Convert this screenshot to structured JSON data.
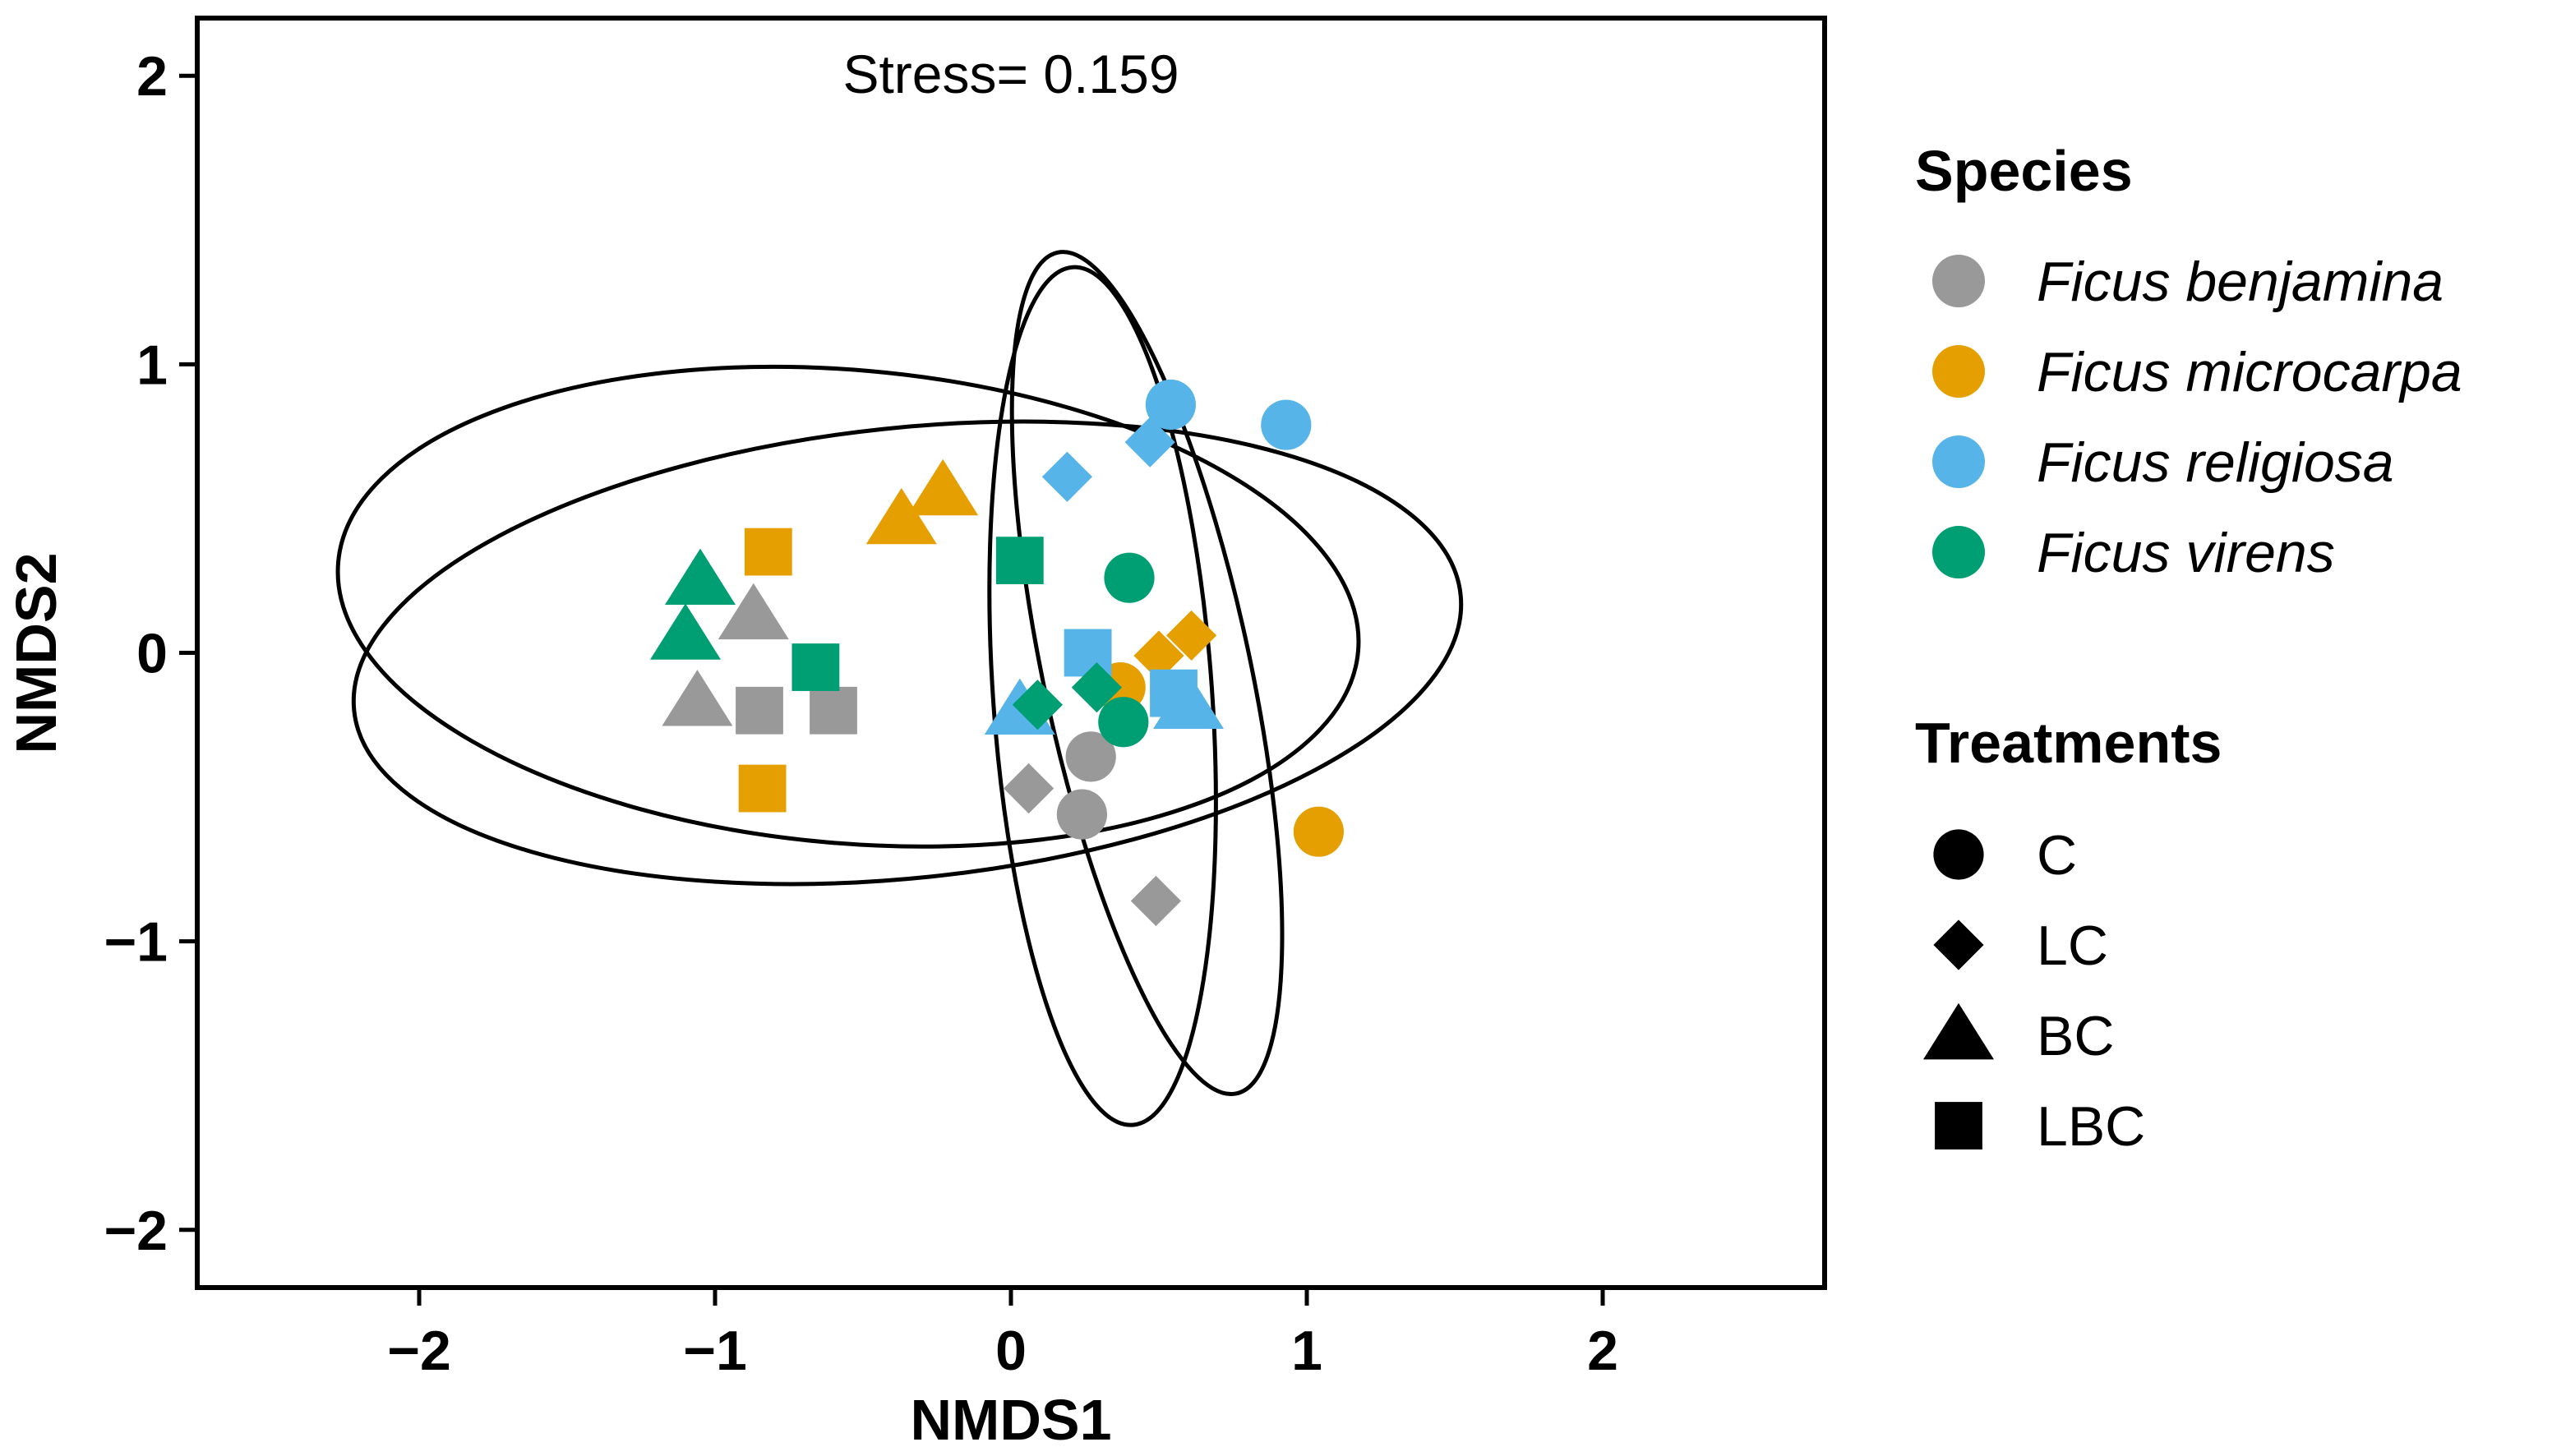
{
  "chart_data": {
    "type": "scatter",
    "title": "",
    "xlabel": "NMDS1",
    "ylabel": "NMDS2",
    "xlim": [
      -2.75,
      2.75
    ],
    "ylim": [
      -2.2,
      2.2
    ],
    "xticks": [
      -2,
      -1,
      0,
      1,
      2
    ],
    "yticks": [
      -2,
      -1,
      0,
      1,
      2
    ],
    "xtick_labels": [
      "−2",
      "−1",
      "0",
      "1",
      "2"
    ],
    "ytick_labels": [
      "−2",
      "−1",
      "0",
      "1",
      "2"
    ],
    "grid": false,
    "annotation": "Stress= 0.159",
    "legend_position": "right",
    "species_legend": {
      "title": "Species",
      "entries": [
        {
          "key": "benjamina",
          "label": "Ficus benjamina",
          "color": "#999999"
        },
        {
          "key": "microcarpa",
          "label": "Ficus microcarpa",
          "color": "#E69F00"
        },
        {
          "key": "religiosa",
          "label": "Ficus religiosa",
          "color": "#56B4E9"
        },
        {
          "key": "virens",
          "label": "Ficus virens",
          "color": "#009E73"
        }
      ]
    },
    "treatment_legend": {
      "title": "Treatments",
      "entries": [
        {
          "key": "C",
          "label": "C",
          "shape": "circle"
        },
        {
          "key": "LC",
          "label": "LC",
          "shape": "diamond"
        },
        {
          "key": "BC",
          "label": "BC",
          "shape": "triangle"
        },
        {
          "key": "LBC",
          "label": "LBC",
          "shape": "square"
        }
      ]
    },
    "ellipses": [
      {
        "cx": -0.55,
        "cy": 0.16,
        "rx": 1.73,
        "ry": 0.82,
        "angle_deg": -5
      },
      {
        "cx": -0.35,
        "cy": 0.0,
        "rx": 1.88,
        "ry": 0.78,
        "angle_deg": 6
      },
      {
        "cx": 0.31,
        "cy": -0.15,
        "rx": 0.37,
        "ry": 1.49,
        "angle_deg": 4
      },
      {
        "cx": 0.46,
        "cy": -0.07,
        "rx": 0.35,
        "ry": 1.49,
        "angle_deg": 12
      }
    ],
    "points": [
      {
        "species": "benjamina",
        "treatment": "BC",
        "x": -0.87,
        "y": 0.13
      },
      {
        "species": "benjamina",
        "treatment": "BC",
        "x": -1.06,
        "y": -0.17
      },
      {
        "species": "benjamina",
        "treatment": "LBC",
        "x": -0.85,
        "y": -0.2
      },
      {
        "species": "benjamina",
        "treatment": "LBC",
        "x": -0.6,
        "y": -0.2
      },
      {
        "species": "benjamina",
        "treatment": "C",
        "x": 0.27,
        "y": -0.36
      },
      {
        "species": "benjamina",
        "treatment": "C",
        "x": 0.24,
        "y": -0.56
      },
      {
        "species": "benjamina",
        "treatment": "LC",
        "x": 0.06,
        "y": -0.47
      },
      {
        "species": "benjamina",
        "treatment": "LC",
        "x": 0.49,
        "y": -0.86
      },
      {
        "species": "microcarpa",
        "treatment": "BC",
        "x": -0.37,
        "y": 0.46
      },
      {
        "species": "microcarpa",
        "treatment": "BC",
        "x": -0.23,
        "y": 0.56
      },
      {
        "species": "microcarpa",
        "treatment": "LBC",
        "x": -0.82,
        "y": 0.35
      },
      {
        "species": "microcarpa",
        "treatment": "LBC",
        "x": -0.84,
        "y": -0.47
      },
      {
        "species": "microcarpa",
        "treatment": "C",
        "x": 0.37,
        "y": -0.12
      },
      {
        "species": "microcarpa",
        "treatment": "C",
        "x": 1.04,
        "y": -0.62
      },
      {
        "species": "microcarpa",
        "treatment": "LC",
        "x": 0.5,
        "y": -0.01
      },
      {
        "species": "microcarpa",
        "treatment": "LC",
        "x": 0.61,
        "y": 0.06
      },
      {
        "species": "religiosa",
        "treatment": "C",
        "x": 0.54,
        "y": 0.86
      },
      {
        "species": "religiosa",
        "treatment": "C",
        "x": 0.93,
        "y": 0.79
      },
      {
        "species": "religiosa",
        "treatment": "LC",
        "x": 0.47,
        "y": 0.73
      },
      {
        "species": "religiosa",
        "treatment": "LC",
        "x": 0.19,
        "y": 0.61
      },
      {
        "species": "religiosa",
        "treatment": "LBC",
        "x": 0.26,
        "y": 0.0
      },
      {
        "species": "religiosa",
        "treatment": "LBC",
        "x": 0.55,
        "y": -0.14
      },
      {
        "species": "religiosa",
        "treatment": "BC",
        "x": 0.03,
        "y": -0.2
      },
      {
        "species": "religiosa",
        "treatment": "BC",
        "x": 0.6,
        "y": -0.18
      },
      {
        "species": "virens",
        "treatment": "BC",
        "x": -1.05,
        "y": 0.25
      },
      {
        "species": "virens",
        "treatment": "BC",
        "x": -1.1,
        "y": 0.06
      },
      {
        "species": "virens",
        "treatment": "LBC",
        "x": -0.66,
        "y": -0.05
      },
      {
        "species": "virens",
        "treatment": "LBC",
        "x": 0.03,
        "y": 0.32
      },
      {
        "species": "virens",
        "treatment": "C",
        "x": 0.4,
        "y": 0.26
      },
      {
        "species": "virens",
        "treatment": "C",
        "x": 0.38,
        "y": -0.24
      },
      {
        "species": "virens",
        "treatment": "LC",
        "x": 0.09,
        "y": -0.18
      },
      {
        "species": "virens",
        "treatment": "LC",
        "x": 0.29,
        "y": -0.12
      }
    ]
  }
}
